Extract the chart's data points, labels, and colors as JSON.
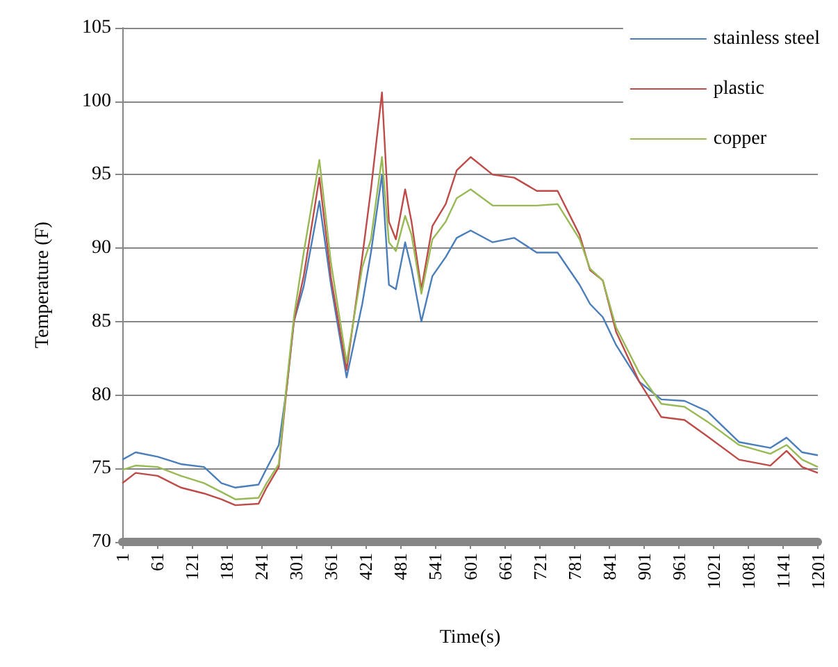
{
  "chart_data": {
    "type": "line",
    "xlabel": "Time(s)",
    "ylabel": "Temperature (F)",
    "x": [
      1,
      24,
      62,
      102,
      142,
      172,
      196,
      236,
      250,
      271,
      285,
      297,
      314,
      341,
      361,
      388,
      415,
      430,
      449,
      461,
      473,
      489,
      500,
      517,
      536,
      559,
      578,
      602,
      640,
      677,
      716,
      752,
      790,
      808,
      830,
      853,
      893,
      931,
      971,
      1010,
      1065,
      1119,
      1147,
      1174,
      1201
    ],
    "series": [
      {
        "name": "stainless steel",
        "color": "#4a7ebb",
        "values": [
          75.6,
          76.1,
          75.8,
          75.3,
          75.1,
          74.0,
          73.7,
          73.9,
          75.0,
          76.6,
          80.6,
          85.0,
          87.4,
          93.2,
          87.5,
          81.2,
          86.2,
          89.7,
          95.0,
          87.5,
          87.2,
          90.4,
          88.6,
          85.0,
          88.1,
          89.4,
          90.7,
          91.2,
          90.4,
          90.7,
          89.7,
          89.7,
          87.5,
          86.2,
          85.3,
          83.4,
          80.9,
          79.7,
          79.6,
          78.9,
          76.8,
          76.4,
          77.1,
          76.1,
          75.9
        ]
      },
      {
        "name": "plastic",
        "color": "#be4b48",
        "values": [
          74.0,
          74.7,
          74.5,
          73.7,
          73.3,
          72.9,
          72.5,
          72.6,
          73.7,
          75.1,
          80.6,
          85.0,
          88.1,
          94.8,
          88.0,
          81.7,
          89.4,
          94.0,
          100.6,
          91.8,
          90.6,
          94.0,
          91.8,
          87.2,
          91.5,
          93.0,
          95.3,
          96.2,
          95.0,
          94.8,
          93.9,
          93.9,
          90.9,
          88.5,
          87.8,
          84.3,
          80.9,
          78.5,
          78.3,
          77.2,
          75.6,
          75.2,
          76.2,
          75.1,
          74.7
        ]
      },
      {
        "name": "copper",
        "color": "#98b954",
        "values": [
          74.9,
          75.2,
          75.1,
          74.5,
          74.0,
          73.4,
          72.9,
          73.0,
          74.0,
          75.3,
          80.9,
          85.3,
          89.7,
          96.0,
          89.0,
          82.2,
          88.7,
          90.6,
          96.2,
          90.4,
          89.8,
          92.2,
          90.9,
          86.9,
          90.6,
          91.8,
          93.4,
          94.0,
          92.9,
          92.9,
          92.9,
          93.0,
          90.6,
          88.6,
          87.8,
          84.6,
          81.5,
          79.4,
          79.2,
          78.2,
          76.6,
          76.0,
          76.6,
          75.6,
          75.1
        ]
      }
    ],
    "xlim": [
      1,
      1201
    ],
    "xticks": [
      1,
      61,
      121,
      181,
      241,
      301,
      361,
      421,
      481,
      541,
      601,
      661,
      721,
      781,
      841,
      901,
      961,
      1021,
      1081,
      1141,
      1201
    ],
    "ylim": [
      70,
      105
    ],
    "yticks": [
      70,
      75,
      80,
      85,
      90,
      95,
      100,
      105
    ],
    "grid": "y",
    "legend": "top right",
    "marker": "none",
    "line_style": "solid"
  }
}
